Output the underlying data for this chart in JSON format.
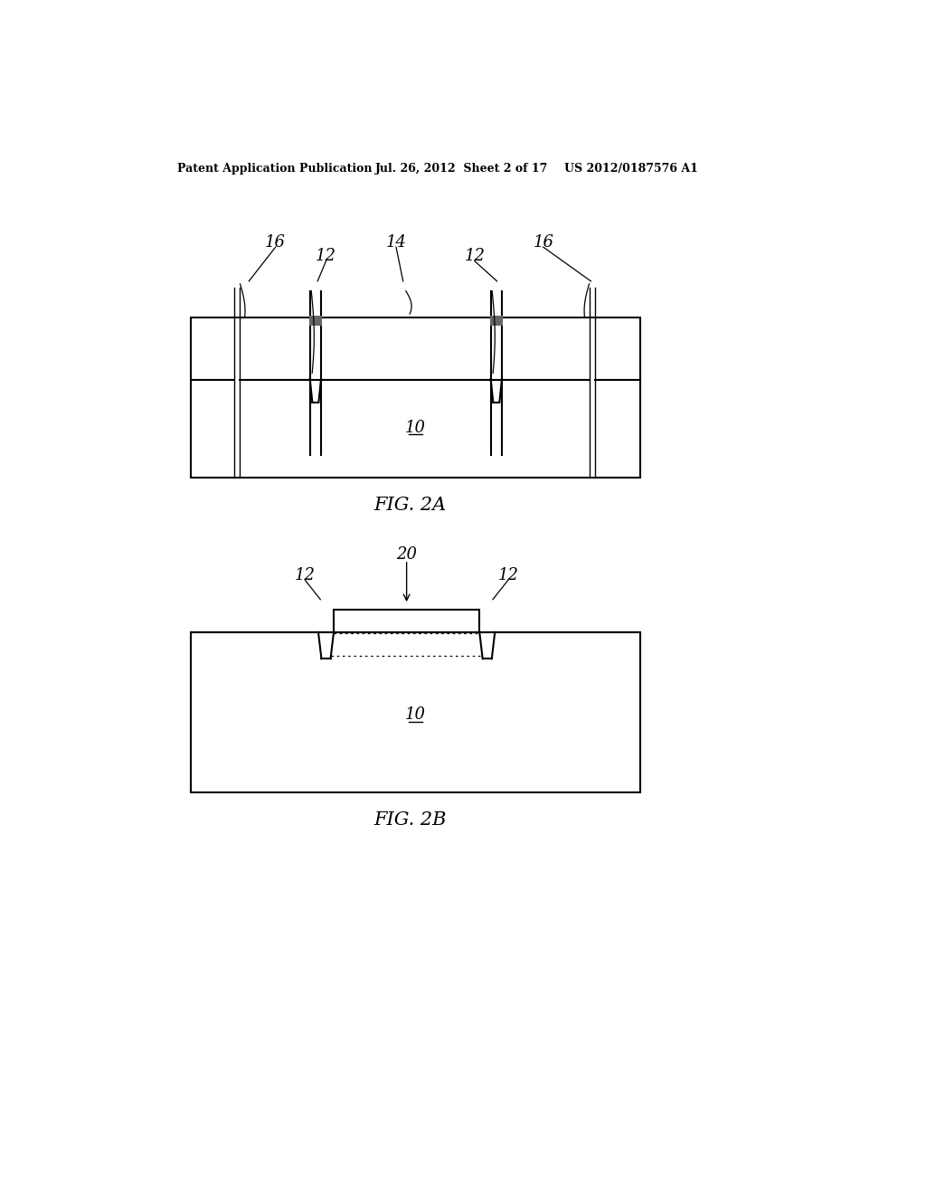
{
  "bg_color": "#ffffff",
  "line_color": "#000000",
  "header_left": "Patent Application Publication",
  "header_mid": "Jul. 26, 2012  Sheet 2 of 17",
  "header_right": "US 2012/0187576 A1",
  "fig2a_label": "FIG. 2A",
  "fig2b_label": "FIG. 2B",
  "ref_10": "10",
  "ref_12": "12",
  "ref_14": "14",
  "ref_16": "16",
  "ref_20": "20"
}
